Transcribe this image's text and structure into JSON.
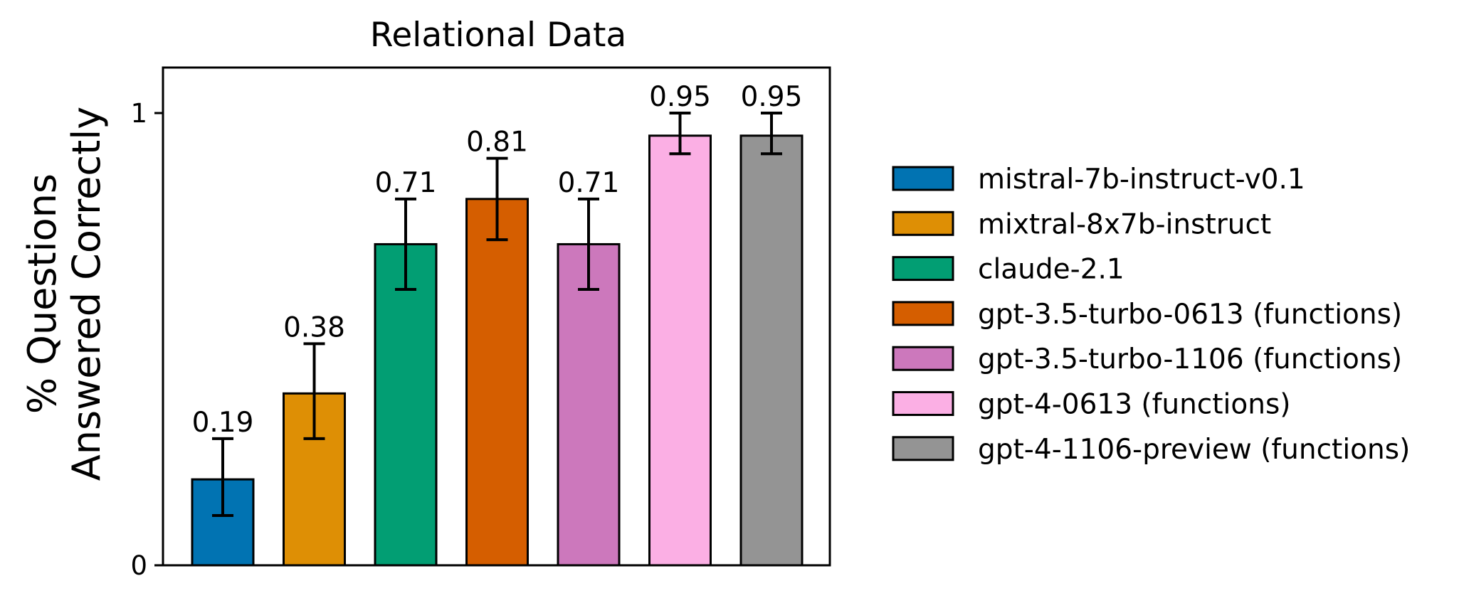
{
  "chart_data": {
    "type": "bar",
    "title": "Relational Data",
    "ylabel_lines": [
      "% Questions",
      "Answered Correctly"
    ],
    "xlabel": "",
    "ylim": [
      0,
      1.1
    ],
    "yticks": [
      0,
      1
    ],
    "ytick_labels": [
      "0",
      "1"
    ],
    "grid": false,
    "legend_position": "right",
    "categories": [
      "mistral-7b-instruct-v0.1",
      "mixtral-8x7b-instruct",
      "claude-2.1",
      "gpt-3.5-turbo-0613 (functions)",
      "gpt-3.5-turbo-1106 (functions)",
      "gpt-4-0613 (functions)",
      "gpt-4-1106-preview (functions)"
    ],
    "values": [
      0.19,
      0.38,
      0.71,
      0.81,
      0.71,
      0.95,
      0.95
    ],
    "value_labels": [
      "0.19",
      "0.38",
      "0.71",
      "0.81",
      "0.71",
      "0.95",
      "0.95"
    ],
    "error_low": [
      0.11,
      0.28,
      0.61,
      0.72,
      0.61,
      0.91,
      0.91
    ],
    "error_high": [
      0.28,
      0.49,
      0.81,
      0.9,
      0.81,
      1.0,
      1.0
    ],
    "colors": [
      "#0173b2",
      "#de8f05",
      "#029e73",
      "#d55e00",
      "#cc78bc",
      "#fbafe4",
      "#949494"
    ]
  }
}
